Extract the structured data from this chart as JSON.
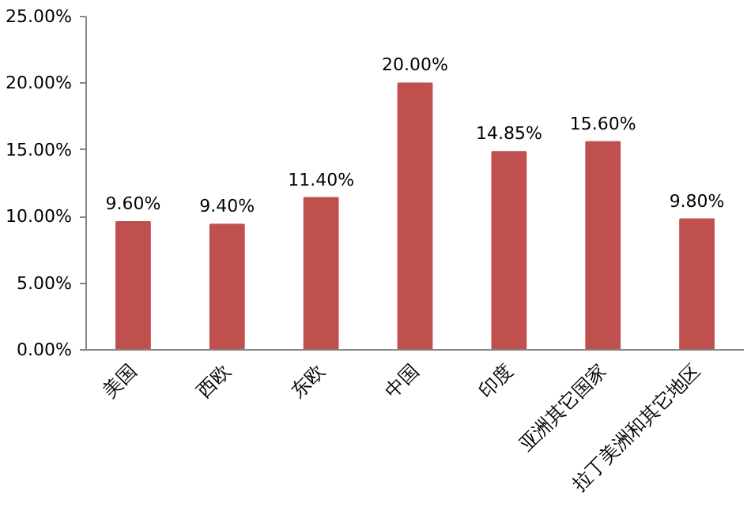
{
  "chart_data": {
    "type": "bar",
    "categories": [
      "美国",
      "西欧",
      "东欧",
      "中国",
      "印度",
      "亚洲其它国家",
      "拉丁美洲和其它地区"
    ],
    "values": [
      9.6,
      9.4,
      11.4,
      20.0,
      14.85,
      15.6,
      9.8
    ],
    "value_labels": [
      "9.60%",
      "9.40%",
      "11.40%",
      "20.00%",
      "14.85%",
      "15.60%",
      "9.80%"
    ],
    "color": "#c0504d",
    "ylim": [
      0,
      25
    ],
    "yticks": [
      {
        "value": 0,
        "label": "0.00%"
      },
      {
        "value": 5,
        "label": "5.00%"
      },
      {
        "value": 10,
        "label": "10.00%"
      },
      {
        "value": 15,
        "label": "15.00%"
      },
      {
        "value": 20,
        "label": "20.00%"
      },
      {
        "value": 25,
        "label": "25.00%"
      }
    ],
    "grid": false
  }
}
